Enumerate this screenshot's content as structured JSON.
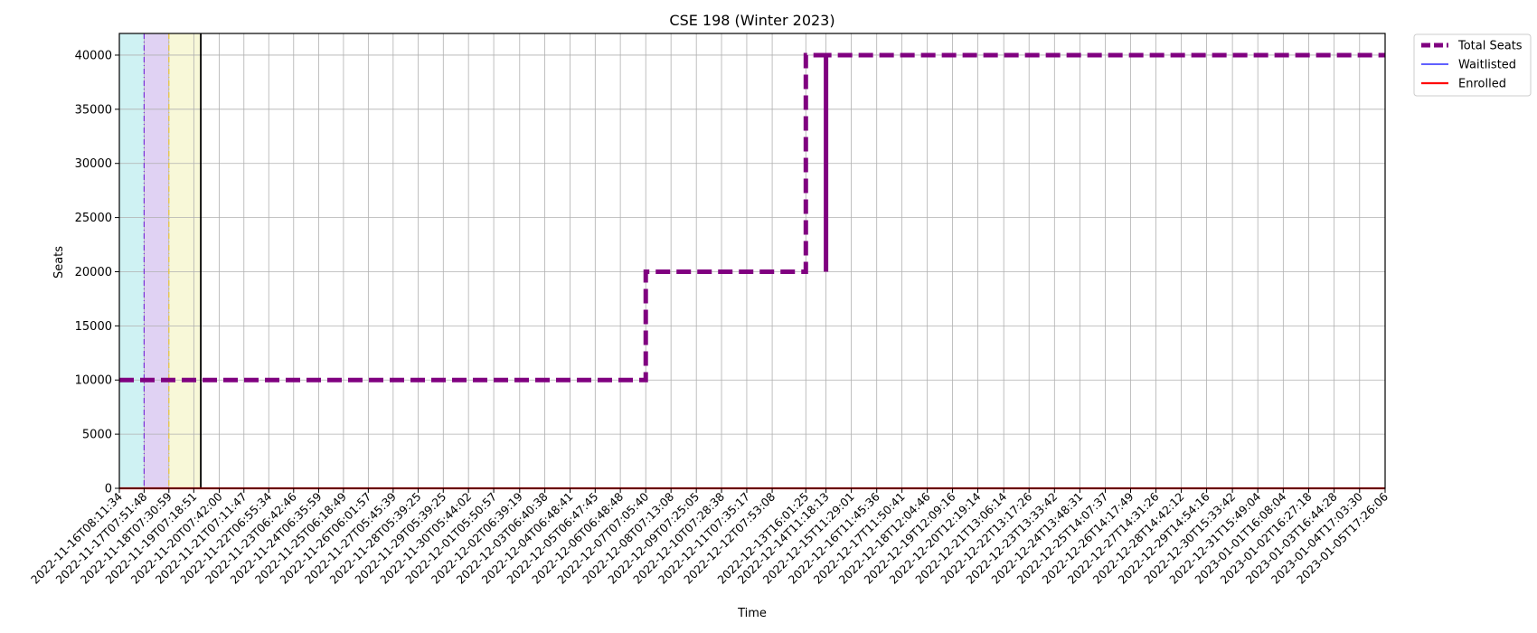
{
  "chart_data": {
    "type": "line",
    "title": "CSE 198 (Winter 2023)",
    "xlabel": "Time",
    "ylabel": "Seats",
    "ylim": [
      0,
      42000
    ],
    "y_ticks": [
      0,
      5000,
      10000,
      15000,
      20000,
      25000,
      30000,
      35000,
      40000
    ],
    "grid": true,
    "legend_position": "outside top-right",
    "x_ticks": [
      "2022-11-16T08:11:34",
      "2022-11-17T07:51:48",
      "2022-11-18T07:30:59",
      "2022-11-19T07:18:51",
      "2022-11-20T07:42:00",
      "2022-11-21T07:11:47",
      "2022-11-22T06:55:34",
      "2022-11-23T06:42:46",
      "2022-11-24T06:35:59",
      "2022-11-25T06:18:49",
      "2022-11-26T06:01:57",
      "2022-11-27T05:45:39",
      "2022-11-28T05:39:25",
      "2022-11-29T05:39:25",
      "2022-11-30T05:44:02",
      "2022-12-01T05:50:57",
      "2022-12-02T06:39:19",
      "2022-12-03T06:40:38",
      "2022-12-04T06:48:41",
      "2022-12-05T06:47:45",
      "2022-12-06T06:48:48",
      "2022-12-07T07:05:40",
      "2022-12-08T07:13:08",
      "2022-12-09T07:25:05",
      "2022-12-10T07:28:38",
      "2022-12-11T07:35:17",
      "2022-12-12T07:53:08",
      "2022-12-13T16:01:25",
      "2022-12-14T11:18:13",
      "2022-12-15T11:29:01",
      "2022-12-16T11:45:36",
      "2022-12-17T11:50:41",
      "2022-12-18T12:04:46",
      "2022-12-19T12:09:16",
      "2022-12-20T12:19:14",
      "2022-12-21T13:06:14",
      "2022-12-22T13:17:26",
      "2022-12-23T13:33:42",
      "2022-12-24T13:48:31",
      "2022-12-25T14:07:37",
      "2022-12-26T14:17:49",
      "2022-12-27T14:31:26",
      "2022-12-28T14:42:12",
      "2022-12-29T14:54:16",
      "2022-12-30T15:33:42",
      "2022-12-31T15:49:04",
      "2023-01-01T16:08:04",
      "2023-01-02T16:27:18",
      "2023-01-03T16:44:28",
      "2023-01-04T17:03:30",
      "2023-01-05T17:26:06"
    ],
    "series": [
      {
        "name": "Total Seats",
        "color": "#800080",
        "style": "dashed",
        "points": [
          {
            "x": "2022-11-16T08:11:34",
            "y": 10000
          },
          {
            "x": "2022-12-07T07:05:40",
            "y": 10000
          },
          {
            "x": "2022-12-07T07:05:40",
            "y": 20000
          },
          {
            "x": "2022-12-13T16:01:25",
            "y": 20000
          },
          {
            "x": "2022-12-13T16:01:25",
            "y": 40000
          },
          {
            "x": "2022-12-14T11:18:13",
            "y": 40000
          },
          {
            "x": "2022-12-14T11:18:13",
            "y": 20000
          },
          {
            "x": "2022-12-14T11:18:13",
            "y": 40000
          },
          {
            "x": "2023-01-05T17:26:06",
            "y": 40000
          }
        ]
      },
      {
        "name": "Waitlisted",
        "color": "#0000ff",
        "style": "solid",
        "points": [
          {
            "x": "2022-11-16T08:11:34",
            "y": 0
          },
          {
            "x": "2023-01-05T17:26:06",
            "y": 0
          }
        ]
      },
      {
        "name": "Enrolled",
        "color": "#ff0000",
        "style": "solid",
        "points": [
          {
            "x": "2022-11-16T08:11:34",
            "y": 0
          },
          {
            "x": "2023-01-05T17:26:06",
            "y": 0
          }
        ]
      }
    ],
    "shaded_regions": [
      {
        "from": "2022-11-16T08:11:34",
        "to": "2022-11-17T07:51:48",
        "color": "#cff2f3",
        "edge_color": "#7b2fd6"
      },
      {
        "from": "2022-11-17T07:51:48",
        "to": "2022-11-18T07:30:59",
        "color": "#e0d2f3",
        "edge_color": "#e8c23a"
      },
      {
        "from": "2022-11-18T07:30:59",
        "to": "2022-11-19T14:00:00",
        "color": "#f8f8d8",
        "edge_color": "#000000"
      }
    ],
    "vertical_markers": [
      {
        "x": "2022-11-19T14:00:00",
        "color": "#000000"
      }
    ]
  }
}
